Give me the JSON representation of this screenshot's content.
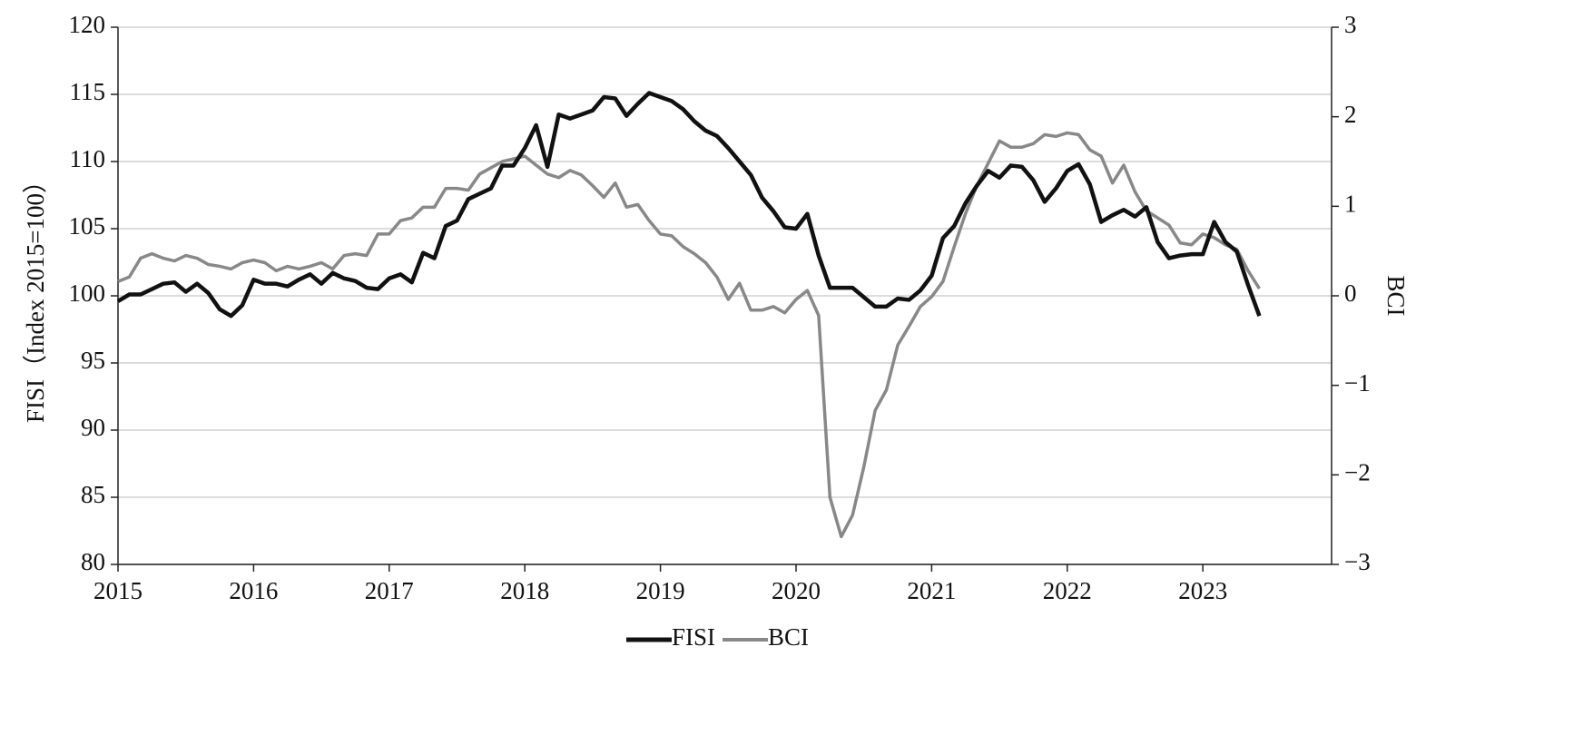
{
  "chart_data": {
    "type": "line",
    "y_label": "FISI（Index 2015=100）",
    "y2_label": "BCI",
    "categories": [
      "2015",
      null,
      null,
      null,
      null,
      null,
      null,
      null,
      null,
      null,
      null,
      null,
      "2016",
      null,
      null,
      null,
      null,
      null,
      null,
      null,
      null,
      null,
      null,
      null,
      "2017",
      null,
      null,
      null,
      null,
      null,
      null,
      null,
      null,
      null,
      null,
      null,
      "2018",
      null,
      null,
      null,
      null,
      null,
      null,
      null,
      null,
      null,
      null,
      null,
      "2019",
      null,
      null,
      null,
      null,
      null,
      null,
      null,
      null,
      null,
      null,
      null,
      "2020",
      null,
      null,
      null,
      null,
      null,
      null,
      null,
      null,
      null,
      null,
      null,
      "2021",
      null,
      null,
      null,
      null,
      null,
      null,
      null,
      null,
      null,
      null,
      null,
      "2022",
      null,
      null,
      null,
      null,
      null,
      null,
      null,
      null,
      null,
      null,
      null,
      "2023",
      null,
      null,
      null,
      null,
      null
    ],
    "series": [
      {
        "name": "FISI",
        "color": "#111111",
        "axis": "y",
        "values": [
          99.6,
          100.1,
          100.1,
          100.5,
          100.9,
          101.0,
          100.3,
          100.9,
          100.2,
          99.0,
          98.5,
          99.3,
          101.2,
          100.9,
          100.9,
          100.7,
          101.2,
          101.6,
          100.9,
          101.7,
          101.3,
          101.1,
          100.6,
          100.5,
          101.3,
          101.6,
          101.0,
          103.2,
          102.8,
          105.2,
          105.6,
          107.2,
          107.6,
          108.0,
          109.7,
          109.7,
          111.0,
          112.7,
          109.6,
          113.5,
          113.2,
          113.5,
          113.8,
          114.8,
          114.7,
          113.4,
          114.3,
          115.1,
          114.8,
          114.5,
          113.9,
          113.0,
          112.3,
          111.9,
          111.0,
          110.0,
          109.0,
          107.3,
          106.3,
          105.1,
          105.0,
          106.1,
          103.0,
          100.6,
          100.6,
          100.6,
          99.9,
          99.2,
          99.2,
          99.8,
          99.7,
          100.4,
          101.5,
          104.3,
          105.2,
          106.9,
          108.2,
          109.3,
          108.8,
          109.7,
          109.6,
          108.6,
          107.0,
          108.0,
          109.3,
          109.8,
          108.3,
          105.5,
          106.0,
          106.4,
          105.9,
          106.6,
          104.0,
          102.8,
          103.0,
          103.1,
          103.1,
          105.5,
          104.0,
          103.3,
          100.8,
          98.5
        ]
      },
      {
        "name": "BCI",
        "color": "#888888",
        "axis": "y2",
        "values": [
          0.16,
          0.21,
          0.42,
          0.47,
          0.42,
          0.39,
          0.45,
          0.42,
          0.35,
          0.33,
          0.3,
          0.37,
          0.4,
          0.37,
          0.28,
          0.33,
          0.3,
          0.33,
          0.37,
          0.3,
          0.45,
          0.47,
          0.45,
          0.69,
          0.69,
          0.84,
          0.87,
          0.99,
          0.99,
          1.2,
          1.2,
          1.18,
          1.36,
          1.43,
          1.5,
          1.53,
          1.56,
          1.46,
          1.36,
          1.32,
          1.4,
          1.35,
          1.23,
          1.1,
          1.26,
          0.99,
          1.02,
          0.84,
          0.69,
          0.67,
          0.55,
          0.47,
          0.37,
          0.21,
          -0.04,
          0.14,
          -0.16,
          -0.16,
          -0.12,
          -0.19,
          -0.04,
          0.06,
          -0.22,
          -2.25,
          -2.69,
          -2.45,
          -1.91,
          -1.28,
          -1.05,
          -0.55,
          -0.34,
          -0.12,
          -0.01,
          0.16,
          0.55,
          0.92,
          1.23,
          1.48,
          1.73,
          1.66,
          1.66,
          1.7,
          1.8,
          1.78,
          1.82,
          1.8,
          1.63,
          1.56,
          1.26,
          1.46,
          1.16,
          0.95,
          0.87,
          0.79,
          0.59,
          0.57,
          0.69,
          0.65,
          0.57,
          0.52,
          0.28,
          0.08
        ]
      }
    ],
    "ylim": [
      80,
      120
    ],
    "yticks": [
      80,
      85,
      90,
      95,
      100,
      105,
      110,
      115,
      120
    ],
    "y2lim": [
      -3,
      3
    ],
    "y2ticks": [
      {
        "value": -3,
        "label": "−3"
      },
      {
        "value": -2,
        "label": "−2"
      },
      {
        "value": -1,
        "label": "−1"
      },
      0,
      1,
      2,
      3
    ],
    "grid": true,
    "legend": "bottom"
  }
}
